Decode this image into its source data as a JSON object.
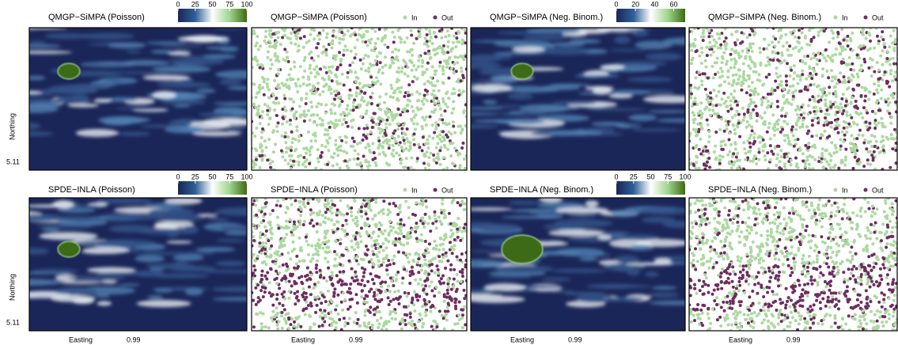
{
  "chart_data": {
    "type": "spatial-panels",
    "panels": [
      {
        "title": "QMGP−SiMPA (Poisson)",
        "kind": "heatmap",
        "colorbar": {
          "range": [
            0,
            100
          ],
          "ticks": [
            0,
            25,
            50,
            75,
            100
          ]
        }
      },
      {
        "title": "QMGP−SiMPA (Poisson)",
        "kind": "scatter"
      },
      {
        "title": "QMGP−SiMPA (Neg. Binom.)",
        "kind": "heatmap",
        "colorbar": {
          "range": [
            0,
            72
          ],
          "ticks": [
            0,
            20,
            40,
            60
          ]
        }
      },
      {
        "title": "QMGP−SiMPA (Neg. Binom.)",
        "kind": "scatter"
      },
      {
        "title": "SPDE−INLA (Poisson)",
        "kind": "heatmap",
        "colorbar": {
          "range": [
            0,
            100
          ],
          "ticks": [
            0,
            25,
            50,
            75,
            100
          ]
        }
      },
      {
        "title": "SPDE−INLA (Poisson)",
        "kind": "scatter"
      },
      {
        "title": "SPDE−INLA (Neg. Binom.)",
        "kind": "heatmap",
        "colorbar": {
          "range": [
            0,
            100
          ],
          "ticks": [
            0,
            25,
            50,
            75,
            100
          ]
        }
      },
      {
        "title": "SPDE−INLA (Neg. Binom.)",
        "kind": "scatter"
      }
    ],
    "legend": [
      {
        "name": "In",
        "color": "#abd9a0"
      },
      {
        "name": "Out",
        "color": "#6e2c60"
      }
    ],
    "colorbar_colors": [
      "#1b2658",
      "#2f5f95",
      "#ffffff",
      "#9fd48e",
      "#3e6a12"
    ],
    "y_axis": {
      "label": "Northing",
      "tick": 5.11
    },
    "x_axis": {
      "label": "Easting",
      "tick": 0.99
    }
  }
}
